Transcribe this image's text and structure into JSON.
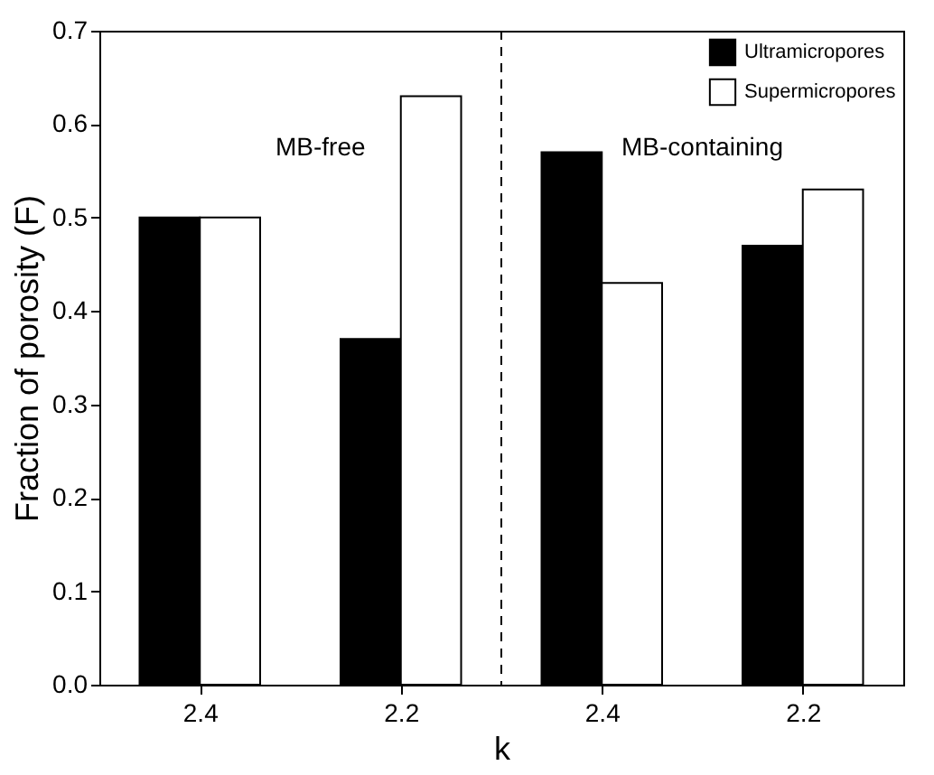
{
  "chart_data": {
    "type": "bar",
    "xlabel": "k",
    "ylabel": "Fraction of porosity (F)",
    "categories": [
      "2.4",
      "2.2",
      "2.4",
      "2.2"
    ],
    "series": [
      {
        "name": "Ultramicropores",
        "color": "#000000",
        "values": [
          0.5,
          0.37,
          0.57,
          0.47
        ]
      },
      {
        "name": "Supermicropores",
        "color": "#ffffff",
        "values": [
          0.5,
          0.63,
          0.43,
          0.53
        ]
      }
    ],
    "ylim": [
      0,
      0.7
    ],
    "yticks": [
      {
        "value": 0,
        "label": "0.0"
      },
      {
        "value": 0.1,
        "label": "0.1"
      },
      {
        "value": 0.2,
        "label": "0.2"
      },
      {
        "value": 0.3,
        "label": "0.3"
      },
      {
        "value": 0.4,
        "label": "0.4"
      },
      {
        "value": 0.5,
        "label": "0.5"
      },
      {
        "value": 0.6,
        "label": "0.6"
      },
      {
        "value": 0.7,
        "label": "0.7"
      }
    ],
    "annotations": [
      "MB-free",
      "MB-containing"
    ],
    "legend": "top right",
    "grid": false
  }
}
